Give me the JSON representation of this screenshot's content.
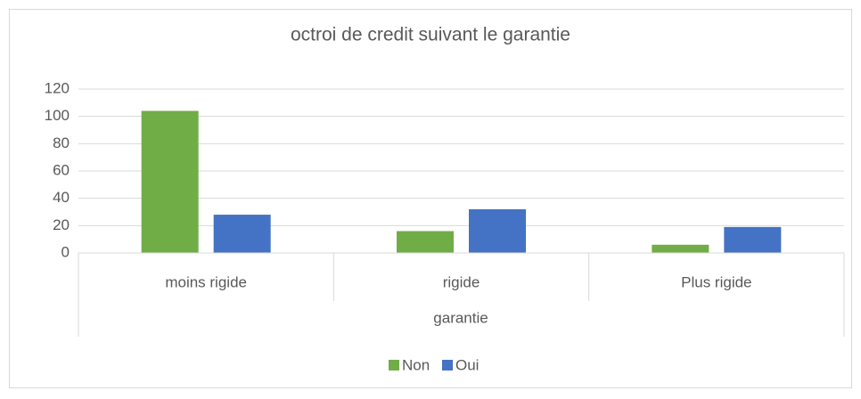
{
  "chart_data": {
    "type": "bar",
    "title": "octroi de credit suivant le garantie",
    "x_label": "garantie",
    "categories": [
      "moins rigide",
      "rigide",
      "Plus rigide"
    ],
    "series": [
      {
        "name": "Non",
        "color": "#70ad47",
        "values": [
          104,
          16,
          6
        ]
      },
      {
        "name": "Oui",
        "color": "#4472c4",
        "values": [
          28,
          32,
          19
        ]
      }
    ],
    "ylim": [
      0,
      120
    ],
    "yticks": [
      0,
      20,
      40,
      60,
      80,
      100,
      120
    ],
    "grid": true,
    "legend": "bottom"
  }
}
